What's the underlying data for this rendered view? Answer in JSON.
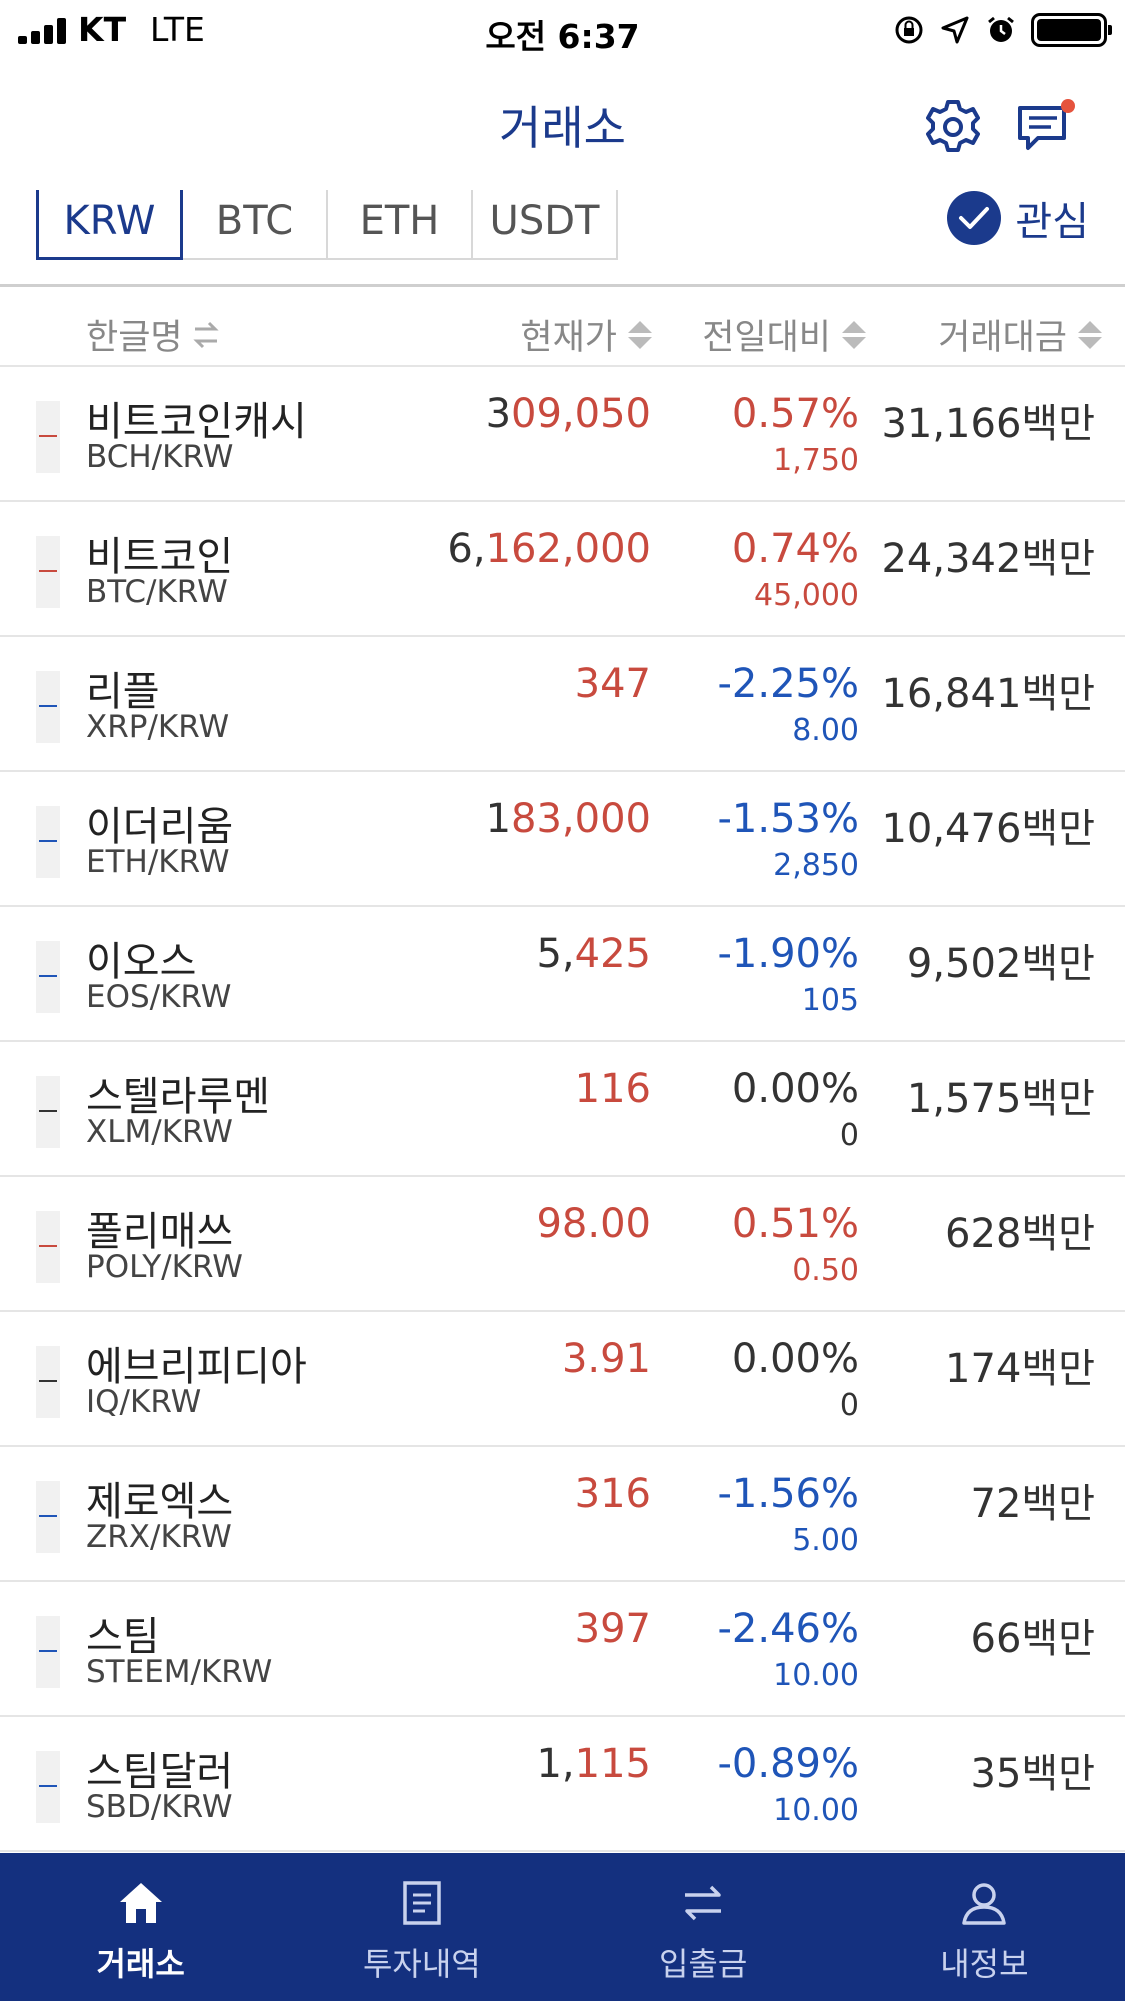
{
  "status_bar": {
    "carrier": "KT",
    "network": "LTE",
    "time": "오전 6:37"
  },
  "header": {
    "title": "거래소",
    "icons": [
      "gear-icon",
      "chat-icon"
    ],
    "notification_dot_color": "#e5533d"
  },
  "tabs": [
    {
      "label": "KRW",
      "active": true
    },
    {
      "label": "BTC",
      "active": false
    },
    {
      "label": "ETH",
      "active": false
    },
    {
      "label": "USDT",
      "active": false
    }
  ],
  "favorites": {
    "label": "관심",
    "checked": true
  },
  "columns": {
    "name": "한글명",
    "price": "현재가",
    "change": "전일대비",
    "volume": "거래대금"
  },
  "colors": {
    "brand": "#1b3a8c",
    "up": "#c84a3e",
    "down": "#1f55b8",
    "neutral": "#333333"
  },
  "rows": [
    {
      "name": "비트코인캐시",
      "symbol": "BCH/KRW",
      "price_head": "3",
      "price_tail": "09,050",
      "change_pct": "0.57%",
      "change_abs": "1,750",
      "volume": "31,166백만",
      "trend": "up"
    },
    {
      "name": "비트코인",
      "symbol": "BTC/KRW",
      "price_head": "6,",
      "price_tail": "162,000",
      "change_pct": "0.74%",
      "change_abs": "45,000",
      "volume": "24,342백만",
      "trend": "up"
    },
    {
      "name": "리플",
      "symbol": "XRP/KRW",
      "price_head": "",
      "price_tail": "347",
      "change_pct": "-2.25%",
      "change_abs": "8.00",
      "volume": "16,841백만",
      "trend": "down"
    },
    {
      "name": "이더리움",
      "symbol": "ETH/KRW",
      "price_head": "1",
      "price_tail": "83,000",
      "change_pct": "-1.53%",
      "change_abs": "2,850",
      "volume": "10,476백만",
      "trend": "down"
    },
    {
      "name": "이오스",
      "symbol": "EOS/KRW",
      "price_head": "5,",
      "price_tail": "425",
      "change_pct": "-1.90%",
      "change_abs": "105",
      "volume": "9,502백만",
      "trend": "down"
    },
    {
      "name": "스텔라루멘",
      "symbol": "XLM/KRW",
      "price_head": "",
      "price_tail": "116",
      "change_pct": "0.00%",
      "change_abs": "0",
      "volume": "1,575백만",
      "trend": "flat"
    },
    {
      "name": "폴리매쓰",
      "symbol": "POLY/KRW",
      "price_head": "",
      "price_tail": "98.00",
      "change_pct": "0.51%",
      "change_abs": "0.50",
      "volume": "628백만",
      "trend": "up"
    },
    {
      "name": "에브리피디아",
      "symbol": "IQ/KRW",
      "price_head": "",
      "price_tail": "3.91",
      "change_pct": "0.00%",
      "change_abs": "0",
      "volume": "174백만",
      "trend": "flat"
    },
    {
      "name": "제로엑스",
      "symbol": "ZRX/KRW",
      "price_head": "",
      "price_tail": "316",
      "change_pct": "-1.56%",
      "change_abs": "5.00",
      "volume": "72백만",
      "trend": "down"
    },
    {
      "name": "스팀",
      "symbol": "STEEM/KRW",
      "price_head": "",
      "price_tail": "397",
      "change_pct": "-2.46%",
      "change_abs": "10.00",
      "volume": "66백만",
      "trend": "down"
    },
    {
      "name": "스팀달러",
      "symbol": "SBD/KRW",
      "price_head": "1,",
      "price_tail": "115",
      "change_pct": "-0.89%",
      "change_abs": "10.00",
      "volume": "35백만",
      "trend": "down"
    }
  ],
  "bottom_nav": [
    {
      "label": "거래소",
      "icon": "home-icon",
      "active": true
    },
    {
      "label": "투자내역",
      "icon": "document-icon",
      "active": false
    },
    {
      "label": "입출금",
      "icon": "transfer-icon",
      "active": false
    },
    {
      "label": "내정보",
      "icon": "user-icon",
      "active": false
    }
  ]
}
